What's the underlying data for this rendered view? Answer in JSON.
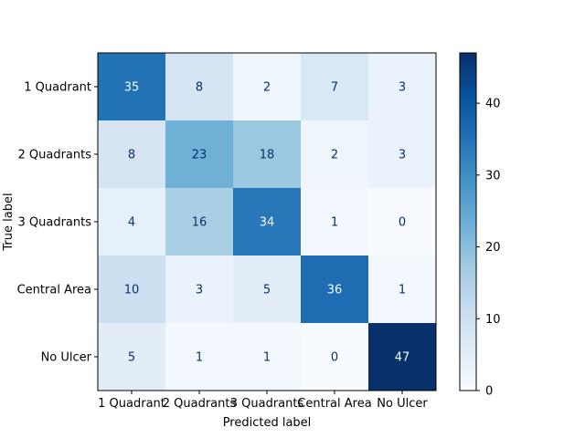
{
  "chart_data": {
    "type": "heatmap",
    "title": "",
    "xlabel": "Predicted label",
    "ylabel": "True label",
    "x_categories": [
      "1 Quadrant",
      "2 Quadrants",
      "3 Quadrants",
      "Central Area",
      "No Ulcer"
    ],
    "y_categories": [
      "1 Quadrant",
      "2 Quadrants",
      "3 Quadrants",
      "Central Area",
      "No Ulcer"
    ],
    "values": [
      [
        35,
        8,
        2,
        7,
        3
      ],
      [
        8,
        23,
        18,
        2,
        3
      ],
      [
        4,
        16,
        34,
        1,
        0
      ],
      [
        10,
        3,
        5,
        36,
        1
      ],
      [
        5,
        1,
        1,
        0,
        47
      ]
    ],
    "colormap": "Blues",
    "colorbar": {
      "range": [
        0,
        47
      ],
      "ticks": [
        0,
        10,
        20,
        30,
        40
      ]
    },
    "text_color_light": "#f7fbff",
    "text_color_dark": "#08306b",
    "grid": false
  }
}
